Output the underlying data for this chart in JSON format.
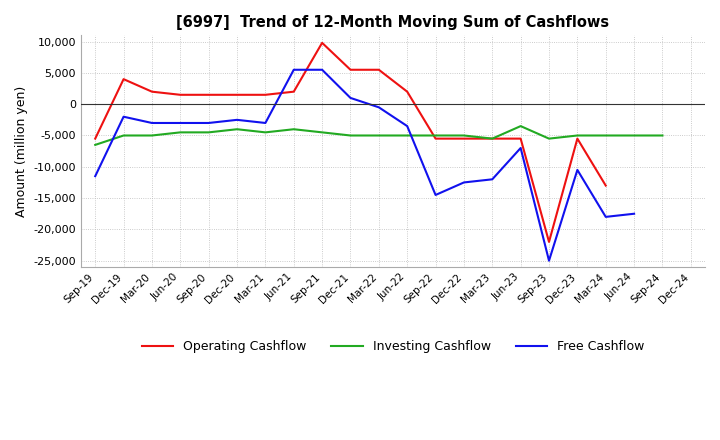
{
  "title": "[6997]  Trend of 12-Month Moving Sum of Cashflows",
  "ylabel": "Amount (million yen)",
  "ylim": [
    -26000,
    11000
  ],
  "yticks": [
    10000,
    5000,
    0,
    -5000,
    -10000,
    -15000,
    -20000,
    -25000
  ],
  "background_color": "#ffffff",
  "grid_color": "#bbbbbb",
  "dates": [
    "Sep-19",
    "Dec-19",
    "Mar-20",
    "Jun-20",
    "Sep-20",
    "Dec-20",
    "Mar-21",
    "Jun-21",
    "Sep-21",
    "Dec-21",
    "Mar-22",
    "Jun-22",
    "Sep-22",
    "Dec-22",
    "Mar-23",
    "Jun-23",
    "Sep-23",
    "Dec-23",
    "Mar-24",
    "Jun-24",
    "Sep-24",
    "Dec-24"
  ],
  "operating": [
    -5500,
    4000,
    2000,
    1500,
    1500,
    1500,
    1500,
    2000,
    9800,
    5500,
    5500,
    2000,
    -5500,
    -5500,
    -5500,
    -5500,
    -22000,
    -5500,
    -13000,
    null,
    null,
    null
  ],
  "investing": [
    -6500,
    -5000,
    -5000,
    -4500,
    -4500,
    -4000,
    -4500,
    -4000,
    -4500,
    -5000,
    -5000,
    -5000,
    -5000,
    -5000,
    -5500,
    -3500,
    -5500,
    -5000,
    -5000,
    -5000,
    -5000,
    null
  ],
  "free": [
    -11500,
    -2000,
    -3000,
    -3000,
    -3000,
    -2500,
    -3000,
    5500,
    5500,
    1000,
    -500,
    -3500,
    -14500,
    -12500,
    -12000,
    -7000,
    -25000,
    -10500,
    -18000,
    -17500,
    null,
    null
  ],
  "operating_color": "#ee1111",
  "investing_color": "#22aa22",
  "free_color": "#1111ee",
  "legend_labels": [
    "Operating Cashflow",
    "Investing Cashflow",
    "Free Cashflow"
  ]
}
